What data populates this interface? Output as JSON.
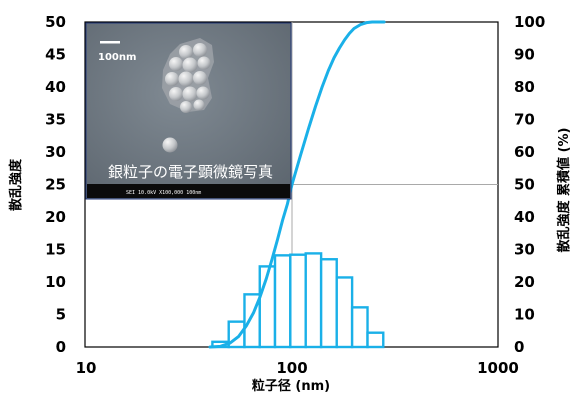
{
  "chart_data": {
    "type": "bar",
    "xscale": "log",
    "xlim": [
      10,
      1000
    ],
    "ylim_left": [
      0,
      50
    ],
    "ylim_right": [
      0,
      100
    ],
    "xlabel": "粒子径 (nm)",
    "ylabel_left": "散乱強度",
    "ylabel_right": "散乱強度 累積値 (%)",
    "xticks": [
      "10",
      "100",
      "1000"
    ],
    "yticks_left": [
      "0",
      "5",
      "10",
      "15",
      "20",
      "25",
      "30",
      "35",
      "40",
      "45",
      "50"
    ],
    "yticks_right": [
      "0",
      "10",
      "20",
      "30",
      "40",
      "50",
      "60",
      "70",
      "80",
      "90",
      "100"
    ],
    "grid": false,
    "reference_lines": {
      "x": 100,
      "y_left": 25
    },
    "series": [
      {
        "kind": "histogram",
        "color": "#1ab0e8",
        "x": [
          45,
          54,
          64,
          76,
          90,
          107,
          127,
          151,
          180,
          213,
          254
        ],
        "values": [
          0.8,
          3.9,
          8.1,
          12.4,
          14.1,
          14.2,
          14.4,
          13.5,
          10.7,
          6.1,
          2.2
        ]
      },
      {
        "kind": "cumulative",
        "axis": "right",
        "color": "#1ab0e8",
        "x": [
          40,
          45,
          50,
          55,
          60,
          65,
          70,
          75,
          80,
          85,
          90,
          95,
          100,
          110,
          120,
          130,
          140,
          150,
          160,
          170,
          180,
          190,
          200,
          215,
          230,
          245,
          260,
          280
        ],
        "values": [
          0,
          0.2,
          1.2,
          3.2,
          6.5,
          10.5,
          15.5,
          21,
          27,
          33,
          39,
          44,
          50,
          59,
          67,
          74,
          80,
          85,
          89,
          92,
          94.5,
          96.5,
          98,
          99.2,
          99.8,
          100,
          100,
          100
        ]
      }
    ],
    "inset": {
      "caption": "銀粒子の電子顕微鏡写真",
      "scalebar_label": "100nm",
      "meta_text": "SEI    10.0kV   X100,000    100nm"
    }
  }
}
